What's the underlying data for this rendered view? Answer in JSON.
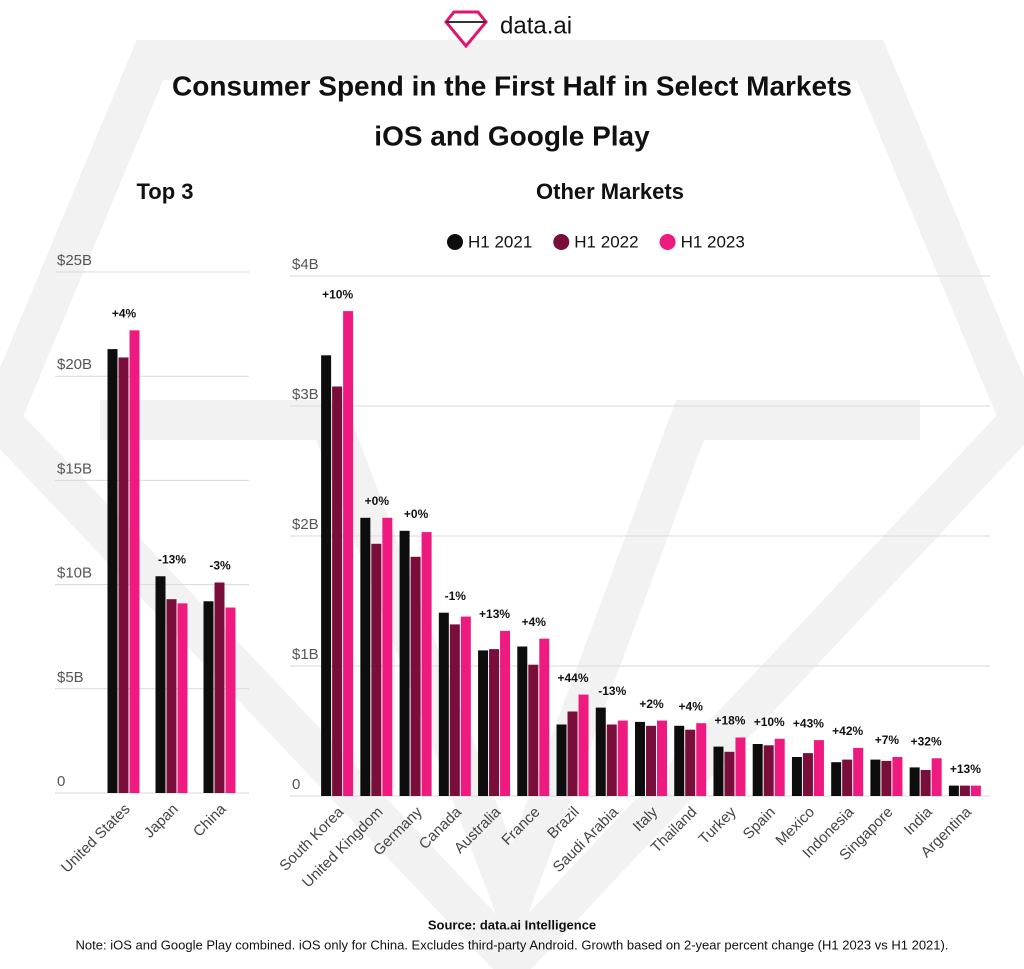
{
  "header": {
    "logo": "data.ai",
    "title": "Consumer Spend in the First Half in Select Markets",
    "subtitle": "iOS and Google Play"
  },
  "chart_data": [
    {
      "type": "bar",
      "title": "Top 3",
      "categories": [
        "United States",
        "Japan",
        "China"
      ],
      "series": [
        {
          "name": "H1 2021",
          "color": "#0d0d0d",
          "values": [
            21.3,
            10.4,
            9.2
          ]
        },
        {
          "name": "H1 2022",
          "color": "#7a0e3a",
          "values": [
            20.9,
            9.3,
            10.1
          ]
        },
        {
          "name": "H1 2023",
          "color": "#ee1a7f",
          "values": [
            22.2,
            9.1,
            8.9
          ]
        }
      ],
      "annotations": [
        "+4%",
        "-13%",
        "-3%"
      ],
      "ylim": [
        0,
        25
      ],
      "yticks": [
        0,
        {
          "value": 5,
          "label": "$5B"
        },
        {
          "value": 10,
          "label": "$10B"
        },
        {
          "value": 15,
          "label": "$15B"
        },
        {
          "value": 20,
          "label": "$20B"
        },
        {
          "value": 25,
          "label": "$25B"
        }
      ],
      "grid": true
    },
    {
      "type": "bar",
      "title": "Other Markets",
      "categories": [
        "South Korea",
        "United Kingdom",
        "Germany",
        "Canada",
        "Australia",
        "France",
        "Brazil",
        "Saudi Arabia",
        "Italy",
        "Thailand",
        "Turkey",
        "Spain",
        "Mexico",
        "Indonesia",
        "Singapore",
        "India",
        "Argentina"
      ],
      "series": [
        {
          "name": "H1 2021",
          "color": "#0d0d0d",
          "values": [
            3.39,
            2.14,
            2.04,
            1.41,
            1.12,
            1.15,
            0.55,
            0.68,
            0.57,
            0.54,
            0.38,
            0.4,
            0.3,
            0.26,
            0.28,
            0.22,
            0.08
          ]
        },
        {
          "name": "H1 2022",
          "color": "#7a0e3a",
          "values": [
            3.15,
            1.94,
            1.84,
            1.32,
            1.13,
            1.01,
            0.65,
            0.55,
            0.54,
            0.51,
            0.34,
            0.39,
            0.33,
            0.28,
            0.27,
            0.2,
            0.08
          ]
        },
        {
          "name": "H1 2023",
          "color": "#ee1a7f",
          "values": [
            3.73,
            2.14,
            2.03,
            1.38,
            1.27,
            1.21,
            0.78,
            0.58,
            0.58,
            0.56,
            0.45,
            0.44,
            0.43,
            0.37,
            0.3,
            0.29,
            0.08
          ]
        }
      ],
      "annotations": [
        "+10%",
        "+0%",
        "+0%",
        "-1%",
        "+13%",
        "+4%",
        "+44%",
        "-13%",
        "+2%",
        "+4%",
        "+18%",
        "+10%",
        "+43%",
        "+42%",
        "+7%",
        "+32%",
        "+13%"
      ],
      "ylim": [
        0,
        4
      ],
      "yticks": [
        0,
        {
          "value": 1,
          "label": "$1B"
        },
        {
          "value": 2,
          "label": "$2B"
        },
        {
          "value": 3,
          "label": "$3B"
        },
        {
          "value": 4,
          "label": "$4B"
        }
      ],
      "grid": true,
      "legend": "top"
    }
  ],
  "footer": {
    "source": "Source: data.ai Intelligence",
    "note": "Note: iOS and Google Play combined. iOS only for China. Excludes third-party Android. Growth based on 2-year percent change (H1 2023 vs H1 2021)."
  }
}
